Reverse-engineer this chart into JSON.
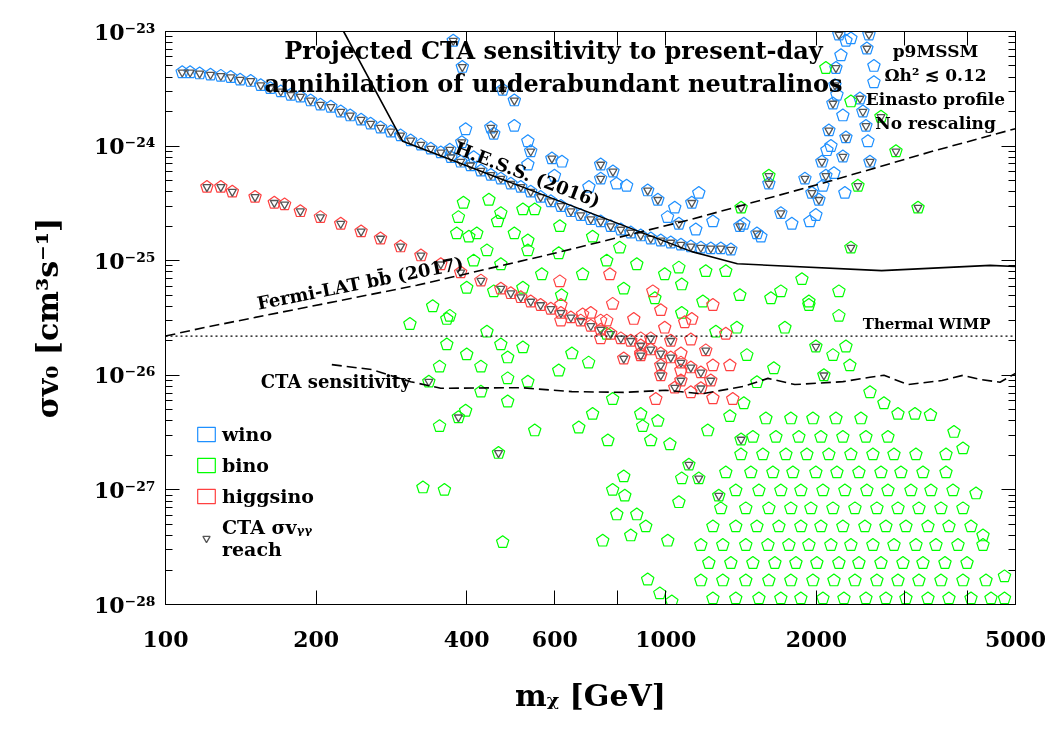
{
  "chart_data": {
    "type": "scatter",
    "title": "Projected CTA sensitivity to present-day annihilation of underabundant neutralinos",
    "xlabel": "mᵪ [GeV]",
    "ylabel": "σv₀ [cm³s⁻¹]",
    "log": "xy",
    "xlim": [
      100,
      5000
    ],
    "ylim": [
      1e-28,
      1e-23
    ],
    "xticks": [
      100,
      200,
      400,
      600,
      {
        "value": 800,
        "label": null
      },
      1000,
      2000,
      {
        "value": 3000,
        "label": null
      },
      {
        "value": 4000,
        "label": null
      },
      5000
    ],
    "yticks": [
      {
        "value": 1e-28,
        "label": "10⁻²⁸"
      },
      {
        "value": 1e-27,
        "label": "10⁻²⁷"
      },
      {
        "value": 1e-26,
        "label": "10⁻²⁶"
      },
      {
        "value": 1e-25,
        "label": "10⁻²⁵"
      },
      {
        "value": 1e-24,
        "label": "10⁻²⁴"
      },
      {
        "value": 1e-23,
        "label": "10⁻²³"
      }
    ],
    "legend": "bottom left",
    "series": [
      {
        "name": "wino",
        "color": "#1e90ff",
        "x": [
          108,
          112,
          117,
          123,
          129,
          135,
          141,
          148,
          155,
          162,
          170,
          178,
          186,
          195,
          204,
          214,
          224,
          234,
          246,
          257,
          269,
          282,
          295,
          309,
          324,
          339,
          355,
          372,
          389,
          407,
          427,
          447,
          468,
          490,
          513,
          537,
          562,
          589,
          617,
          646,
          676,
          708,
          741,
          776,
          813,
          851,
          891,
          933,
          977,
          1023,
          1072,
          1122,
          1175,
          1230,
          1288,
          1349,
          376,
          392,
          472,
          498,
          447,
          498,
          453,
          370,
          391,
          413,
          398,
          530,
          537,
          592,
          620,
          530,
          599,
          741,
          784,
          702,
          741,
          797,
          835,
          920,
          964,
          1042,
          1127,
          1164,
          1008,
          1062,
          1148,
          1242,
          1406,
          1521,
          1698,
          1607,
          1897,
          1941,
          1432,
          1786,
          1549,
          1959,
          2023,
          2051,
          2089,
          2118,
          2138,
          2158,
          2188,
          2178,
          2218,
          2291,
          2344,
          2239,
          2259,
          2443,
          2477,
          2512,
          2535,
          2559,
          2547,
          2523,
          2606,
          2606,
          2291,
          2259,
          2280,
          2168,
          1995,
          2061,
          2099,
          2198
        ],
        "values": [
          4.4e-24,
          4.4e-24,
          4.3e-24,
          4.2e-24,
          4.1e-24,
          4e-24,
          3.8e-24,
          3.7e-24,
          3.4e-24,
          3.2e-24,
          3e-24,
          2.8e-24,
          2.7e-24,
          2.5e-24,
          2.3e-24,
          2.2e-24,
          2e-24,
          1.85e-24,
          1.7e-24,
          1.57e-24,
          1.45e-24,
          1.34e-24,
          1.24e-24,
          1.12e-24,
          1.03e-24,
          9.5e-25,
          8.8e-25,
          8e-25,
          7.3e-25,
          6.8e-25,
          6.1e-25,
          5.6e-25,
          5.2e-25,
          4.7e-25,
          4.4e-25,
          4e-25,
          3.6e-25,
          3.3e-25,
          3e-25,
          2.7e-25,
          2.5e-25,
          2.3e-25,
          2.2e-25,
          2e-25,
          1.87e-25,
          1.76e-25,
          1.66e-25,
          1.56e-25,
          1.5e-25,
          1.44e-25,
          1.38e-25,
          1.33e-25,
          1.3e-25,
          1.28e-25,
          1.28e-25,
          1.25e-25,
          8.3e-24,
          4.9e-24,
          3.1e-24,
          2.5e-24,
          1.45e-24,
          1.5e-24,
          1.28e-24,
          9.3e-25,
          1.08e-24,
          8e-25,
          1.4e-24,
          1.1e-24,
          9e-25,
          7.8e-25,
          7.3e-25,
          6.9e-25,
          5.5e-25,
          6.9e-25,
          6e-25,
          4.4e-25,
          5.2e-25,
          4.7e-25,
          4.5e-25,
          4.1e-25,
          3.4e-25,
          2.9e-25,
          3.2e-25,
          3.9e-25,
          2.4e-25,
          2.1e-25,
          1.87e-25,
          2.2e-25,
          2e-25,
          1.73e-25,
          2.6e-25,
          4.7e-25,
          5.2e-25,
          2.2e-25,
          2.1e-25,
          2.1e-25,
          1.62e-25,
          3.9e-25,
          3.4e-25,
          7.3e-25,
          5.5e-25,
          1.37e-24,
          1e-24,
          2.35e-24,
          4.8e-24,
          3.4e-24,
          9.4e-24,
          8.3e-24,
          8.7e-24,
          6.2e-24,
          1.85e-24,
          2.6e-24,
          2e-24,
          1.5e-24,
          1.1e-24,
          7.3e-25,
          9.4e-24,
          7.1e-24,
          5e-24,
          3.6e-24,
          1.19e-24,
          8.1e-25,
          3.9e-25,
          5.8e-25,
          2.5e-25,
          4.5e-25,
          9.2e-25,
          2.8e-24
        ]
      },
      {
        "name": "bino",
        "color": "#00ff00",
        "x": [
          2089,
          2344,
          2692,
          2884,
          2421,
          3192,
          2344,
          1414,
          1607,
          547,
          614,
          714,
          809,
          875,
          995,
          1062,
          1202,
          1318,
          1406,
          1622,
          1698,
          1871,
          1932,
          2218,
          762,
          611,
          682,
          565,
          824,
          951,
          1076,
          1186,
          1076,
          619,
          530,
          394,
          443,
          468,
          518,
          385,
          382,
          419,
          461,
          439,
          404,
          498,
          530,
          413,
          468,
          342,
          308,
          365,
          400,
          453,
          518,
          370,
          365,
          353,
          400,
          427,
          468,
          483,
          427,
          483,
          353,
          398,
          385,
          327,
          361,
          463,
          472,
          483,
          530,
          518,
          439,
          336,
          547,
          649,
          611,
          701,
          762,
          670,
          766,
          783,
          714,
          891,
          899,
          964,
          1019,
          933,
          824,
          783,
          828,
          798,
          875,
          912,
          851,
          748,
          1009,
          920,
          973,
          1028,
          1062,
          1112,
          1164,
          1076,
          1276,
          1414,
          1932,
          2218,
          1387,
          1730,
          1259,
          1452,
          1995,
          2291,
          2158,
          2333,
          1644,
          1521,
          1432,
          1343,
          1213,
          2559,
          2729,
          2911,
          3148,
          3381,
          3767,
          3926,
          3631,
          4169,
          4305,
          4753,
          2070,
          1242,
          1380,
          1535,
          1698,
          1862,
          2061,
          2270,
          2512,
          2754,
          3020,
          3342,
          3681,
          4074,
          4467,
          4753,
          1175,
          1300,
          1445,
          1607,
          1778,
          1968,
          2168,
          2388,
          2642,
          2911,
          3206,
          3548,
          3926,
          4365,
          1219,
          1349,
          1493,
          1652,
          1820,
          2004,
          2218,
          2432,
          2692,
          2979,
          3266,
          3614,
          4000,
          1175,
          1300,
          1445,
          1600,
          1762,
          1932,
          2138,
          2344,
          2594,
          2858,
          3162,
          3467,
          3837,
          4305,
          1242,
          1380,
          1521,
          1683,
          1862,
          2042,
          2259,
          2500,
          2754,
          3020,
          3342,
          3681,
          4074,
          1288,
          1445,
          1607,
          1778,
          1950,
          2158,
          2388,
          2642,
          2911,
          3206,
          3548,
          3926,
          1380,
          1535,
          1698,
          1862,
          2061,
          2280,
          2523,
          2780,
          3090,
          3388,
          3750,
          1318,
          1479,
          1637,
          1795,
          1995,
          2198,
          2432,
          2692,
          2951,
          3266,
          3631,
          1413,
          1563,
          1738,
          1914,
          2118,
          2344,
          2594,
          2858,
          3162,
          1493,
          1660,
          1845,
          2042,
          2259,
          2512,
          2780,
          1585,
          1778,
          1968,
          2188,
          2455
        ],
        "values": [
          4.8e-24,
          2.45e-24,
          1.8e-24,
          9e-25,
          4.5e-25,
          2.9e-25,
          1.3e-25,
          2.9e-25,
          5.5e-25,
          2.8e-25,
          2e-25,
          1.62e-25,
          1.3e-25,
          9.3e-26,
          7.6e-26,
          8.7e-26,
          8.1e-26,
          8.1e-26,
          5e-26,
          4.7e-26,
          5.4e-26,
          6.9e-26,
          4.4e-26,
          5.4e-26,
          1e-25,
          1.16e-25,
          7.6e-26,
          7.6e-26,
          5.7e-26,
          4.7e-26,
          6.2e-26,
          4.4e-26,
          3.5e-26,
          5e-26,
          1.5e-25,
          3.2e-25,
          3.4e-25,
          2.6e-25,
          2.8e-25,
          2.4e-25,
          1.73e-25,
          1.73e-25,
          2.2e-25,
          1.23e-25,
          1.62e-25,
          1.73e-25,
          1.23e-25,
          1e-25,
          9.3e-26,
          4e-26,
          2.8e-26,
          3.1e-26,
          5.8e-26,
          5.4e-26,
          5.8e-26,
          3.3e-26,
          1.86e-26,
          1.19e-26,
          1.52e-26,
          1.19e-26,
          1.86e-26,
          1.43e-26,
          7.2e-27,
          9.4e-27,
          3.6e-27,
          4.9e-27,
          4.3e-27,
          1.05e-27,
          1e-27,
          2.1e-27,
          3.5e-28,
          5.9e-27,
          8.8e-27,
          1.75e-26,
          2.4e-26,
          8.8e-27,
          3.3e-27,
          1.55e-26,
          1.1e-26,
          1.29e-26,
          2.3e-26,
          3.5e-27,
          2.7e-27,
          6.2e-27,
          4.6e-27,
          4.6e-27,
          3.6e-27,
          4e-27,
          2.5e-27,
          2.7e-27,
          1.31e-27,
          1e-27,
          8.9e-28,
          6.1e-28,
          6.1e-28,
          4.8e-28,
          4e-28,
          3.6e-28,
          3.6e-28,
          1.65e-28,
          1.25e-28,
          1.06e-28,
          7.8e-28,
          1.66e-27,
          1.26e-27,
          1.26e-27,
          8.9e-28,
          2.75e-27,
          4.1e-26,
          3.3e-26,
          2.6e-26,
          2.6e-26,
          2.4e-26,
          1.5e-26,
          1.78e-26,
          1.78e-26,
          1.5e-26,
          1.22e-26,
          1.15e-26,
          8.7e-27,
          5.7e-27,
          4.4e-27,
          3.3e-27,
          7.1e-27,
          5.7e-27,
          4.6e-27,
          4.6e-27,
          4.5e-27,
          3.2e-27,
          2.3e-27,
          2.04e-27,
          9.3e-28,
          4e-28,
          1.76e-28,
          1e-26,
          1.13e-28,
          1.13e-28,
          1.13e-28,
          1.13e-28,
          1.13e-28,
          1.13e-28,
          1.13e-28,
          1.13e-28,
          1.13e-28,
          1.13e-28,
          1.13e-28,
          1.13e-28,
          1.13e-28,
          1.13e-28,
          1.13e-28,
          1.62e-28,
          1.62e-28,
          1.62e-28,
          1.62e-28,
          1.62e-28,
          1.62e-28,
          1.62e-28,
          1.62e-28,
          1.62e-28,
          1.62e-28,
          1.62e-28,
          1.62e-28,
          1.62e-28,
          1.62e-28,
          2.3e-28,
          2.3e-28,
          2.3e-28,
          2.3e-28,
          2.3e-28,
          2.3e-28,
          2.3e-28,
          2.3e-28,
          2.3e-28,
          2.3e-28,
          2.3e-28,
          2.3e-28,
          2.3e-28,
          3.3e-28,
          3.3e-28,
          3.3e-28,
          3.3e-28,
          3.3e-28,
          3.3e-28,
          3.3e-28,
          3.3e-28,
          3.3e-28,
          3.3e-28,
          3.3e-28,
          3.3e-28,
          3.3e-28,
          3.3e-28,
          4.8e-28,
          4.8e-28,
          4.8e-28,
          4.8e-28,
          4.8e-28,
          4.8e-28,
          4.8e-28,
          4.8e-28,
          4.8e-28,
          4.8e-28,
          4.8e-28,
          4.8e-28,
          4.8e-28,
          6.9e-28,
          6.9e-28,
          6.9e-28,
          6.9e-28,
          6.9e-28,
          6.9e-28,
          6.9e-28,
          6.9e-28,
          6.9e-28,
          6.9e-28,
          6.9e-28,
          6.9e-28,
          9.9e-28,
          9.9e-28,
          9.9e-28,
          9.9e-28,
          9.9e-28,
          9.9e-28,
          9.9e-28,
          9.9e-28,
          9.9e-28,
          9.9e-28,
          9.9e-28,
          1.42e-27,
          1.42e-27,
          1.42e-27,
          1.42e-27,
          1.42e-27,
          1.42e-27,
          1.42e-27,
          1.42e-27,
          1.42e-27,
          1.42e-27,
          1.42e-27,
          2.04e-27,
          2.04e-27,
          2.04e-27,
          2.04e-27,
          2.04e-27,
          2.04e-27,
          2.04e-27,
          2.04e-27,
          2.04e-27,
          2.9e-27,
          2.9e-27,
          2.9e-27,
          2.9e-27,
          2.9e-27,
          2.9e-27,
          2.9e-27,
          4.2e-27,
          4.2e-27,
          4.2e-27,
          4.2e-27,
          4.2e-27
        ]
      },
      {
        "name": "higgsino",
        "color": "#ff4040",
        "x": [
          121,
          129,
          136,
          151,
          165,
          173,
          186,
          204,
          224,
          246,
          269,
          295,
          324,
          355,
          389,
          427,
          468,
          513,
          562,
          617,
          676,
          741,
          813,
          891,
          977,
          1072,
          1175,
          1230,
          490,
          537,
          589,
          646,
          708,
          776,
          851,
          933,
          1023,
          1122,
          617,
          617,
          741,
          741,
          891,
          891,
          1072,
          1072,
          933,
          1023,
          1122,
          1202,
          1242,
          1242,
          1042,
          1175,
          1122,
          977,
          1072,
          824,
          977,
          891,
          614,
          773,
          942,
          977,
          1127,
          1242,
          708,
          863,
          783,
          1318,
          1343,
          1361,
          955,
          1091,
          762,
          682,
          995
        ],
        "values": [
          4.4e-25,
          4.4e-25,
          4e-25,
          3.6e-25,
          3.2e-25,
          3.1e-25,
          2.7e-25,
          2.4e-25,
          2.1e-25,
          1.8e-25,
          1.56e-25,
          1.33e-25,
          1.11e-25,
          9.3e-26,
          7.9e-26,
          6.7e-26,
          5.7e-26,
          4.8e-26,
          4.1e-26,
          3.5e-26,
          3e-26,
          2.5e-26,
          2.1e-26,
          1.82e-26,
          1.55e-26,
          1.29e-26,
          1.06e-26,
          9e-27,
          5.2e-26,
          4.4e-26,
          3.8e-26,
          3.2e-26,
          2.7e-26,
          2.3e-26,
          2e-26,
          1.68e-26,
          1.43e-26,
          1.17e-26,
          4.1e-26,
          3e-26,
          3e-26,
          2.1e-26,
          2.1e-26,
          1.55e-26,
          1.55e-26,
          1.1e-26,
          2.1e-26,
          2e-26,
          2.05e-26,
          1.65e-26,
          1.22e-26,
          6.3e-27,
          7.8e-27,
          7.7e-27,
          7.1e-27,
          1e-26,
          9e-27,
          1.4e-26,
          1.22e-26,
          1.49e-26,
          6.6e-26,
          7.6e-26,
          5.4e-26,
          3.7e-26,
          3.1e-26,
          4.1e-26,
          3.5e-26,
          3.1e-26,
          4.2e-26,
          2.3e-26,
          1.22e-26,
          6.2e-27,
          6.2e-27,
          2.9e-26,
          3e-26,
          3.4e-26,
          2.6e-26
        ]
      },
      {
        "name": "CTA σvᵧᵧ reach",
        "color": "#555555",
        "marker": "triangle",
        "x": [
          108,
          112,
          117,
          123,
          129,
          135,
          141,
          148,
          155,
          162,
          170,
          178,
          186,
          195,
          204,
          214,
          224,
          234,
          246,
          257,
          269,
          282,
          295,
          309,
          324,
          339,
          355,
          372,
          389,
          407,
          427,
          447,
          468,
          490,
          513,
          537,
          562,
          589,
          617,
          646,
          676,
          708,
          741,
          776,
          813,
          851,
          891,
          933,
          977,
          1023,
          1072,
          1122,
          1175,
          1230,
          1288,
          1349,
          121,
          129,
          136,
          151,
          165,
          173,
          186,
          204,
          224,
          246,
          269,
          295,
          324,
          355,
          389,
          427,
          468,
          513,
          562,
          617,
          676,
          741,
          813,
          891,
          977,
          1072,
          1175,
          1230,
          490,
          537,
          589,
          646,
          708,
          776,
          851,
          933,
          1023,
          1122,
          933,
          1023,
          1202,
          1042,
          1175,
          977,
          824,
          977,
          891,
          1072,
          376,
          392,
          472,
          498,
          447,
          453,
          370,
          391,
          537,
          592,
          741,
          784,
          741,
          920,
          964,
          1127,
          1062,
          1406,
          1521,
          1698,
          1607,
          1897,
          1959,
          2023,
          2051,
          2089,
          2118,
          2158,
          2188,
          2178,
          2218,
          2443,
          2477,
          2512,
          2559,
          2523,
          2547,
          2291,
          2259,
          2884,
          2421,
          3192,
          2344,
          1414,
          1607,
          1995,
          2070,
          1414,
          1112,
          1164,
          1276,
          385,
          463,
          336,
          2692
        ],
        "values": [
          4.4e-24,
          4.4e-24,
          4.3e-24,
          4.2e-24,
          4.1e-24,
          4e-24,
          3.8e-24,
          3.7e-24,
          3.4e-24,
          3.2e-24,
          3e-24,
          2.8e-24,
          2.7e-24,
          2.5e-24,
          2.3e-24,
          2.2e-24,
          2e-24,
          1.85e-24,
          1.7e-24,
          1.57e-24,
          1.45e-24,
          1.34e-24,
          1.24e-24,
          1.12e-24,
          1.03e-24,
          9.5e-25,
          8.8e-25,
          8e-25,
          7.3e-25,
          6.8e-25,
          6.1e-25,
          5.6e-25,
          5.2e-25,
          4.7e-25,
          4.4e-25,
          4e-25,
          3.6e-25,
          3.3e-25,
          3e-25,
          2.7e-25,
          2.5e-25,
          2.3e-25,
          2.2e-25,
          2e-25,
          1.87e-25,
          1.76e-25,
          1.66e-25,
          1.56e-25,
          1.5e-25,
          1.44e-25,
          1.38e-25,
          1.33e-25,
          1.3e-25,
          1.28e-25,
          1.28e-25,
          1.25e-25,
          4.4e-25,
          4.4e-25,
          4e-25,
          3.6e-25,
          3.2e-25,
          3.1e-25,
          2.7e-25,
          2.4e-25,
          2.1e-25,
          1.8e-25,
          1.56e-25,
          1.33e-25,
          1.11e-25,
          9.3e-26,
          7.9e-26,
          6.7e-26,
          5.7e-26,
          4.8e-26,
          4.1e-26,
          3.5e-26,
          3e-26,
          2.5e-26,
          2.1e-26,
          1.82e-26,
          1.55e-26,
          1.29e-26,
          1.06e-26,
          9e-27,
          5.2e-26,
          4.4e-26,
          3.8e-26,
          3.2e-26,
          2.7e-26,
          2.3e-26,
          2e-26,
          1.68e-26,
          1.43e-26,
          1.17e-26,
          2.1e-26,
          2e-26,
          1.65e-26,
          7.8e-27,
          7.7e-27,
          1e-26,
          1.4e-26,
          1.22e-26,
          1.49e-26,
          9e-27,
          8.3e-24,
          4.9e-24,
          3.1e-24,
          2.5e-24,
          1.45e-24,
          1.28e-24,
          9.3e-25,
          1.08e-24,
          9e-25,
          7.8e-25,
          6.9e-25,
          6e-25,
          5.2e-25,
          4.1e-25,
          3.4e-25,
          3.2e-25,
          2.1e-25,
          2e-25,
          1.73e-25,
          2.6e-25,
          4.7e-25,
          5.2e-25,
          3.9e-25,
          3.4e-25,
          7.3e-25,
          5.5e-25,
          1.37e-24,
          2.35e-24,
          4.8e-24,
          3.4e-24,
          9.4e-24,
          2.6e-24,
          2e-24,
          1.5e-24,
          7.3e-25,
          7.1e-24,
          9.4e-24,
          1.19e-24,
          8.1e-25,
          9e-25,
          4.5e-25,
          2.9e-25,
          1.3e-25,
          2.9e-25,
          5.5e-25,
          1.78e-26,
          1e-26,
          2.75e-27,
          1.66e-27,
          1.26e-27,
          8.9e-28,
          4.3e-27,
          2.1e-27,
          8.8e-27,
          1.8e-24
        ]
      },
      {
        "type": "line",
        "color": "#000000",
        "line_style": "solid",
        "x": [
          227,
          298,
          1127,
          1390,
          2700,
          4450,
          5000
        ],
        "values": [
          1e-23,
          1.1e-24,
          1.2e-25,
          9.4e-26,
          8.2e-26,
          9.1e-26,
          8.9e-26
        ]
      },
      {
        "type": "line",
        "color": "#000000",
        "line_style": "dashed",
        "x": [
          100,
          119,
          318,
          599,
          1127,
          2113,
          3409,
          5000
        ],
        "values": [
          2.2e-26,
          2.6e-26,
          6.1e-26,
          1.16e-25,
          2.3e-25,
          4.9e-25,
          9e-25,
          1.42e-24
        ]
      },
      {
        "type": "line",
        "color": "#000000",
        "line_style": "dashed",
        "x": [
          215,
          259,
          309,
          355,
          513,
          649,
          824,
          1000,
          1180,
          1432,
          1600,
          1811,
          2259,
          2559,
          2729,
          3048,
          3565,
          3926,
          4246,
          4656,
          5000
        ],
        "values": [
          1.24e-26,
          1.12e-26,
          8.8e-27,
          7.7e-27,
          7.8e-27,
          7.2e-27,
          7.1e-27,
          7.4e-27,
          6.9e-27,
          8e-27,
          9.4e-27,
          8.3e-27,
          8.8e-27,
          9.6e-27,
          1e-26,
          8.3e-27,
          9e-27,
          1e-26,
          9.2e-27,
          8.7e-27,
          1.04e-26
        ]
      }
    ],
    "ref_lines": [
      {
        "axis": "y",
        "value": 2.2e-26,
        "label": "Thermal WIMP",
        "line_style": "dotted",
        "color": "#000000"
      }
    ],
    "annotations": [
      "p9MSSM",
      "Ωh² ≲ 0.12",
      "Einasto profile",
      "No rescaling",
      {
        "text": "H.E.S.S. (2016)",
        "x": 518,
        "y": 4.4e-25
      },
      {
        "text": "Fermi-LAT bb̄ (2017)",
        "x": 248,
        "y": 4.9e-26
      },
      {
        "text": "CTA sensitivity",
        "x": 309,
        "y": 8.8e-27
      }
    ]
  }
}
